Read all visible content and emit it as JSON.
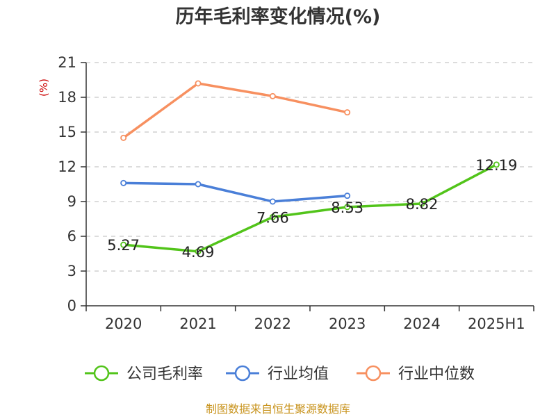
{
  "title": "历年毛利率变化情况(%)",
  "source": "制图数据来自恒生聚源数据库",
  "chart_data": {
    "type": "line",
    "title": "历年毛利率变化情况(%)",
    "ylabel": "(%)",
    "categories": [
      "2020",
      "2021",
      "2022",
      "2023",
      "2024",
      "2025H1"
    ],
    "ylim": [
      0,
      21
    ],
    "yticks": [
      "0",
      "3",
      "6",
      "9",
      "12",
      "15",
      "18",
      "21"
    ],
    "grid": true,
    "legend_position": "bottom",
    "series": [
      {
        "name": "公司毛利率",
        "color": "#52c41a",
        "values": [
          5.27,
          4.69,
          7.66,
          8.53,
          8.82,
          12.19
        ],
        "labels": [
          "5.27",
          "4.69",
          "7.66",
          "8.53",
          "8.82",
          "12.19"
        ]
      },
      {
        "name": "行业均值",
        "color": "#4a7fd8",
        "values": [
          10.6,
          10.5,
          9.0,
          9.5,
          null,
          null
        ]
      },
      {
        "name": "行业中位数",
        "color": "#f79060",
        "values": [
          14.5,
          19.2,
          18.1,
          16.7,
          null,
          null
        ]
      }
    ]
  }
}
